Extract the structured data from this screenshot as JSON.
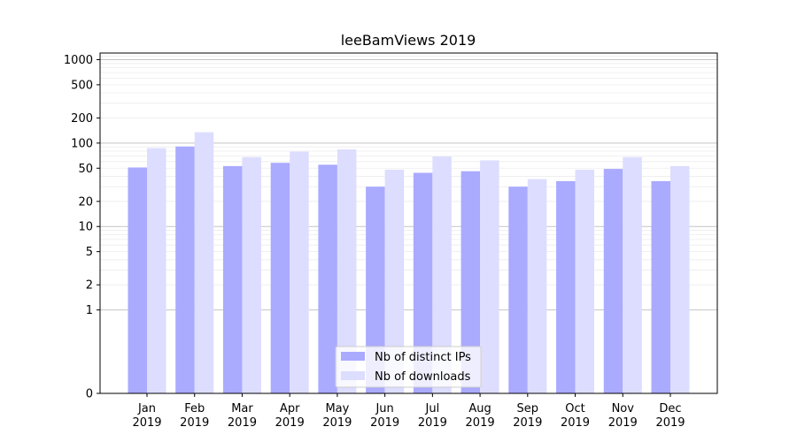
{
  "chart_data": {
    "type": "bar",
    "title": "leeBamViews 2019",
    "xlabel": "",
    "ylabel": "",
    "yscale": "symlog",
    "categories": [
      [
        "Jan",
        "2019"
      ],
      [
        "Feb",
        "2019"
      ],
      [
        "Mar",
        "2019"
      ],
      [
        "Apr",
        "2019"
      ],
      [
        "May",
        "2019"
      ],
      [
        "Jun",
        "2019"
      ],
      [
        "Jul",
        "2019"
      ],
      [
        "Aug",
        "2019"
      ],
      [
        "Sep",
        "2019"
      ],
      [
        "Oct",
        "2019"
      ],
      [
        "Nov",
        "2019"
      ],
      [
        "Dec",
        "2019"
      ]
    ],
    "series": [
      {
        "name": "Nb of distinct IPs",
        "color": "#aaaaff",
        "values": [
          51,
          91,
          53,
          58,
          55,
          30,
          44,
          46,
          30,
          35,
          49,
          35
        ]
      },
      {
        "name": "Nb of downloads",
        "color": "#ddddff",
        "values": [
          87,
          135,
          68,
          79,
          84,
          48,
          69,
          62,
          37,
          48,
          68,
          53
        ]
      }
    ],
    "yticks": [
      "0",
      "1",
      "2",
      "5",
      "10",
      "20",
      "50",
      "100",
      "200",
      "500",
      "1000"
    ],
    "ylim": [
      0,
      1200
    ],
    "grid": true,
    "legend_position": "lower center"
  }
}
